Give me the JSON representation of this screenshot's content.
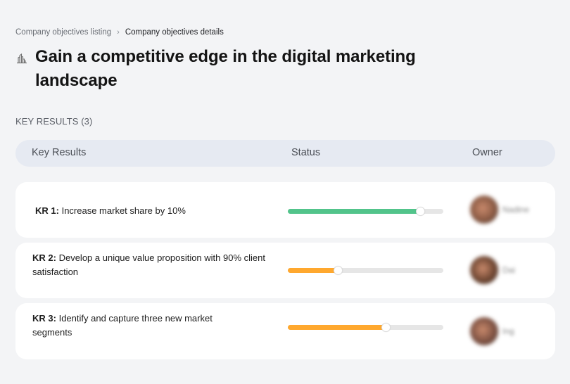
{
  "breadcrumb": {
    "parent": "Company objectives listing",
    "separator": "›",
    "current": "Company objectives details"
  },
  "objective": {
    "icon": "buildings-icon",
    "title": "Gain a competitive edge in the digital marketing landscape"
  },
  "key_results_section": {
    "label": "KEY RESULTS (3)"
  },
  "table": {
    "columns": [
      "Key Results",
      "Status",
      "Owner"
    ]
  },
  "key_results": [
    {
      "prefix": "KR 1:",
      "text": "Increase market share by 10%",
      "progress": 85,
      "progress_width": "85%",
      "color": "#52c48b",
      "owner": {
        "name": "Nadine",
        "avatar_color": "#8a5a44"
      }
    },
    {
      "prefix": "KR 2:",
      "text": "Develop a unique value proposition with 90% client satisfaction",
      "progress": 32,
      "progress_width": "32%",
      "color": "#ffa82e",
      "owner": {
        "name": "Dai",
        "avatar_color": "#6e4632"
      }
    },
    {
      "prefix": "KR 3:",
      "text": "Identify and capture three new market segments",
      "progress": 63,
      "progress_width": "63%",
      "color": "#ffa82e",
      "owner": {
        "name": "Ing",
        "avatar_color": "#7d5142"
      }
    }
  ],
  "colors": {
    "background": "#f3f4f6",
    "header_bg": "#e6eaf2",
    "success": "#52c48b",
    "warning": "#ffa82e",
    "track": "#e6e6e6"
  }
}
